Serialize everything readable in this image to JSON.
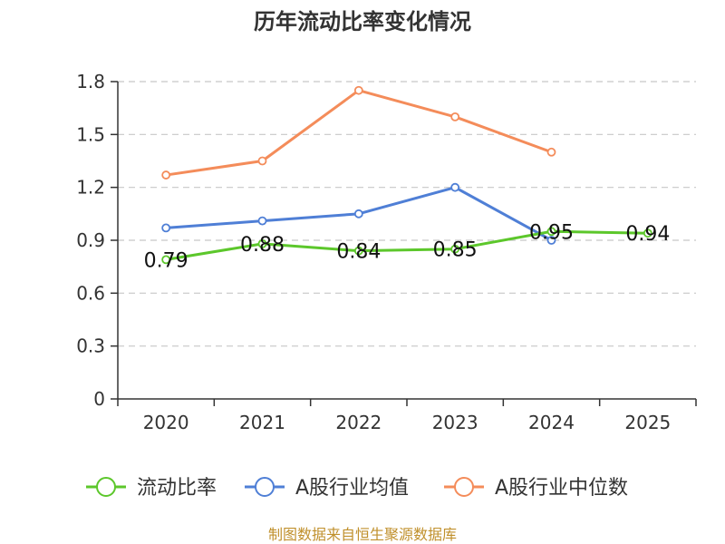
{
  "chart_data": {
    "type": "line",
    "title": "历年流动比率变化情况",
    "categories": [
      "2020",
      "2021",
      "2022",
      "2023",
      "2024",
      "2025"
    ],
    "ylim": [
      0,
      1.8
    ],
    "yticks": [
      0,
      0.3,
      0.6,
      0.9,
      1.2,
      1.5,
      1.8
    ],
    "ytick_labels": [
      "0",
      "0.3",
      "0.6",
      "0.9",
      "1.2",
      "1.5",
      "1.8"
    ],
    "grid": true,
    "legend_position": "bottom",
    "series": [
      {
        "name": "流动比率",
        "color": "#5cc72b",
        "values": [
          0.79,
          0.88,
          0.84,
          0.85,
          0.95,
          0.94
        ],
        "labels": [
          "0.79",
          "0.88",
          "0.84",
          "0.85",
          "0.95",
          "0.94"
        ]
      },
      {
        "name": "A股行业均值",
        "color": "#4f7fd6",
        "values": [
          0.97,
          1.01,
          1.05,
          1.2,
          0.9,
          null
        ]
      },
      {
        "name": "A股行业中位数",
        "color": "#f48c5a",
        "values": [
          1.27,
          1.35,
          1.75,
          1.6,
          1.4,
          null
        ]
      }
    ]
  },
  "source_text": "制图数据来自恒生聚源数据库"
}
